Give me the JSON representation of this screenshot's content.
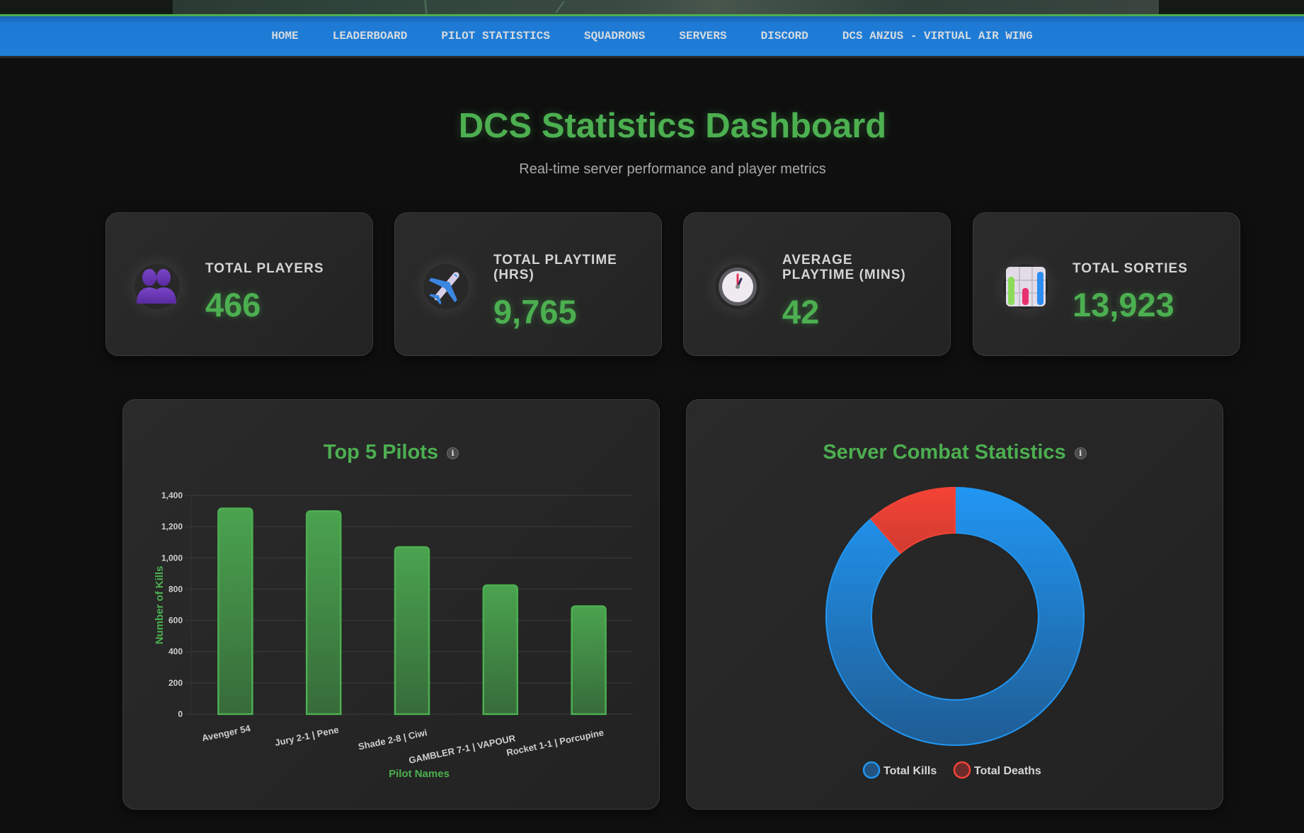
{
  "nav": {
    "items": [
      {
        "label": "HOME"
      },
      {
        "label": "LEADERBOARD"
      },
      {
        "label": "PILOT STATISTICS"
      },
      {
        "label": "SQUADRONS"
      },
      {
        "label": "SERVERS"
      },
      {
        "label": "DISCORD"
      },
      {
        "label": "DCS ANZUS - VIRTUAL AIR WING"
      }
    ]
  },
  "header": {
    "title": "DCS Statistics Dashboard",
    "subtitle": "Real-time server performance and player metrics"
  },
  "stats": [
    {
      "icon": "two-people-icon",
      "label": "TOTAL PLAYERS",
      "value": "466"
    },
    {
      "icon": "airplane-icon",
      "label": "TOTAL PLAYTIME (HRS)",
      "value": "9,765"
    },
    {
      "icon": "clock-icon",
      "label": "AVERAGE PLAYTIME (MINS)",
      "value": "42"
    },
    {
      "icon": "bar-chart-icon",
      "label": "TOTAL SORTIES",
      "value": "13,923"
    }
  ],
  "colors": {
    "accent_green": "#4caf50",
    "nav_blue": "#1f7ed8",
    "kills_blue": "#2196f3",
    "deaths_red": "#f44336"
  },
  "chart_data": [
    {
      "type": "bar",
      "title": "Top 5 Pilots",
      "info_icon": "info-icon",
      "categories": [
        "Avenger 54",
        "Jury 2-1 | Pene",
        "Shade 2-8 | Ciwi",
        "GAMBLER 7-1 | VAPOUR",
        "Rocket 1-1 | Porcupine"
      ],
      "values": [
        1317,
        1299,
        1069,
        825,
        691
      ],
      "xlabel": "Pilot Names",
      "ylabel": "Number of Kills",
      "ylim": [
        0,
        1400
      ],
      "yticks": [
        "0",
        "200",
        "400",
        "600",
        "800",
        "1,000",
        "1,200",
        "1,400"
      ],
      "ytick_values": [
        0,
        200,
        400,
        600,
        800,
        1000,
        1200,
        1400
      ],
      "grid": true
    },
    {
      "type": "pie",
      "variant": "doughnut",
      "title": "Server Combat Statistics",
      "info_icon": "info-icon",
      "labels": [
        "Total Kills",
        "Total Deaths"
      ],
      "values": [
        88.7,
        11.3
      ],
      "legend": "bottom"
    }
  ]
}
